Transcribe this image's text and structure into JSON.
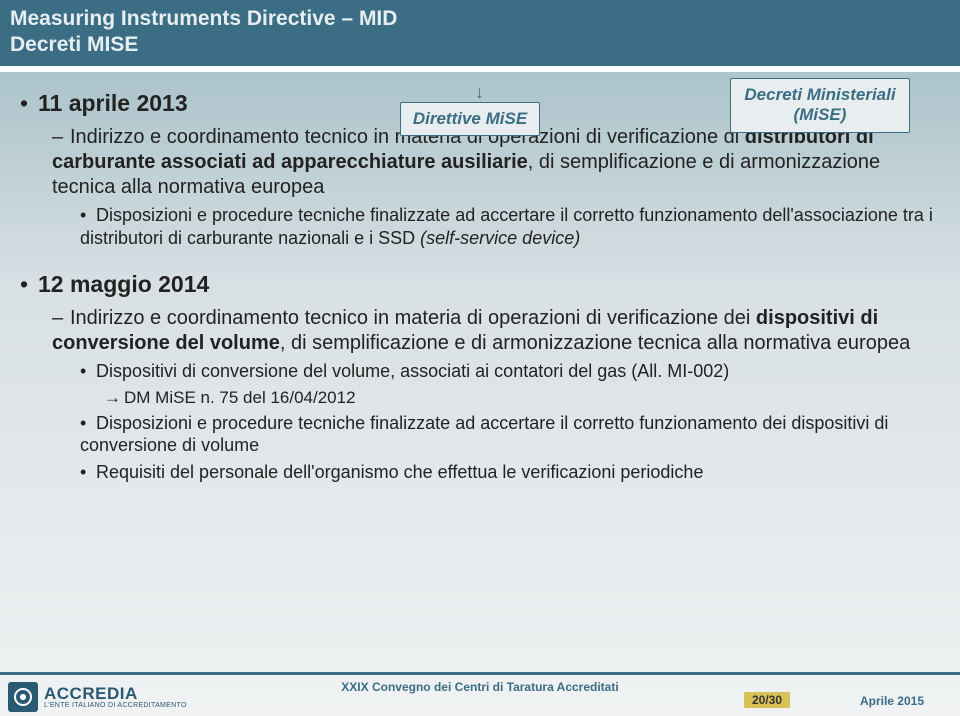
{
  "header": {
    "line1": "Measuring Instruments Directive – MID",
    "line2": "Decreti MISE"
  },
  "boxes": {
    "direttive": "Direttive MiSE",
    "decreti_line1": "Decreti Ministeriali",
    "decreti_line2": "(MiSE)"
  },
  "sec1": {
    "date": "11 aprile 2013",
    "sub": "Indirizzo e coordinamento tecnico in materia di operazioni di verificazione di ",
    "sub_bold": "distributori di carburante associati ad apparecchiature ausiliarie",
    "sub_tail": ", di semplificazione e di armonizzazione tecnica alla normativa europea",
    "b1a": "Disposizioni e procedure tecniche finalizzate ad accertare il corretto funzionamento dell'associazione tra i distributori di carburante nazionali e i SSD ",
    "b1b": "(self-service device)"
  },
  "sec2": {
    "date": "12 maggio 2014",
    "sub": "Indirizzo e coordinamento tecnico in materia di operazioni di verificazione dei ",
    "sub_bold": "dispositivi di conversione del volume",
    "sub_tail": ", di semplificazione e di armonizzazione tecnica alla normativa europea",
    "b1": "Dispositivi di conversione del volume, associati ai contatori del gas (All. MI-002)",
    "b1_sub": "DM MiSE n. 75 del 16/04/2012",
    "b2": "Disposizioni e procedure tecniche finalizzate ad accertare il corretto funzionamento dei dispositivi di conversione di volume",
    "b3": "Requisiti del personale dell'organismo che effettua le verificazioni periodiche"
  },
  "footer": {
    "logo_name": "ACCREDIA",
    "logo_sub": "L'ENTE ITALIANO DI ACCREDITAMENTO",
    "center": "XXIX Convegno dei Centri di Taratura Accreditati",
    "page": "20/30",
    "date": "Aprile 2015"
  },
  "colors": {
    "brand": "#3b6d85",
    "badge_bg": "#d8c257"
  }
}
